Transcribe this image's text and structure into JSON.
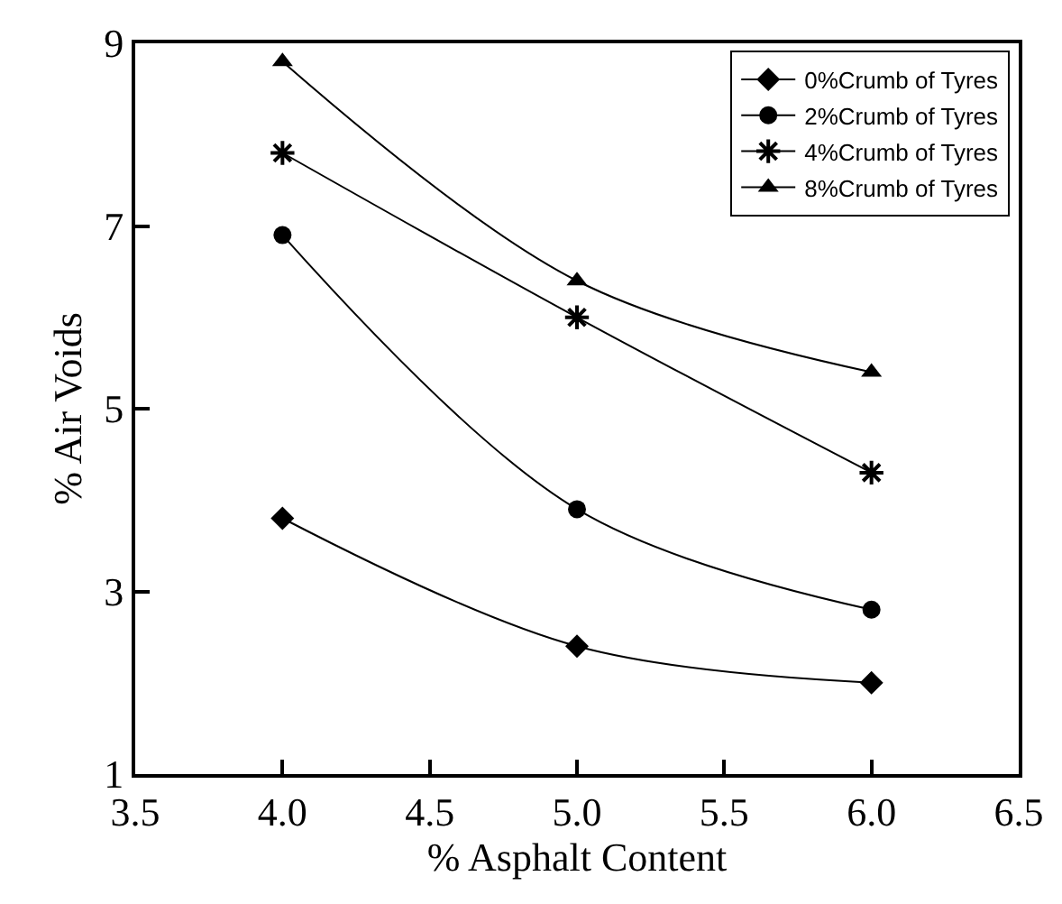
{
  "chart_data": {
    "type": "line",
    "xlabel": "% Asphalt Content",
    "ylabel": "% Air Voids",
    "x": [
      4.0,
      5.0,
      6.0
    ],
    "series": [
      {
        "name": "0%Crumb of Tyres",
        "color": "#000000",
        "marker": "diamond",
        "values": [
          3.8,
          2.4,
          2.0
        ]
      },
      {
        "name": "2%Crumb of Tyres",
        "color": "#000000",
        "marker": "circle",
        "values": [
          6.9,
          3.9,
          2.8
        ]
      },
      {
        "name": "4%Crumb of Tyres",
        "color": "#000000",
        "marker": "cross",
        "values": [
          7.8,
          6.0,
          4.3
        ]
      },
      {
        "name": "8%Crumb of Tyres",
        "color": "#000000",
        "marker": "triangle",
        "values": [
          8.8,
          6.4,
          5.4
        ]
      }
    ],
    "xlim": [
      3.5,
      6.5
    ],
    "xticks": [
      3.5,
      {
        "value": 4,
        "label": "4.0"
      },
      4.5,
      {
        "value": 5,
        "label": "5.0"
      },
      5.5,
      {
        "value": 6,
        "label": "6.0"
      },
      6.5
    ],
    "ylim": [
      1,
      9
    ],
    "yticks": [
      1,
      3,
      5,
      7,
      9
    ],
    "grid": false,
    "legend": "top right",
    "line_style": "solid"
  }
}
